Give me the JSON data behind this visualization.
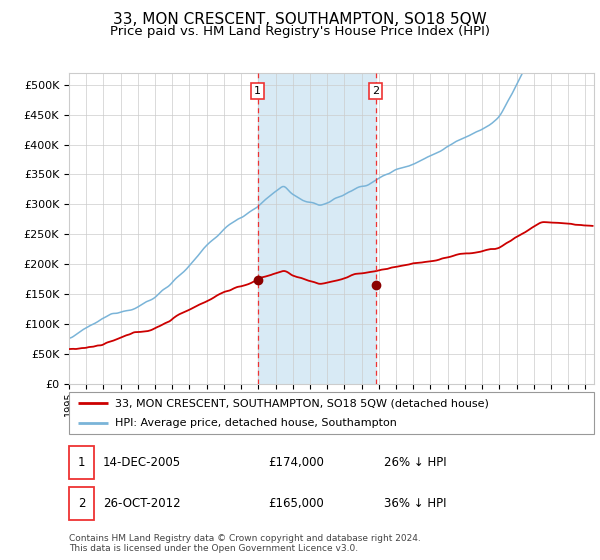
{
  "title": "33, MON CRESCENT, SOUTHAMPTON, SO18 5QW",
  "subtitle": "Price paid vs. HM Land Registry's House Price Index (HPI)",
  "title_fontsize": 11,
  "subtitle_fontsize": 9.5,
  "ylabel_ticks": [
    "£0",
    "£50K",
    "£100K",
    "£150K",
    "£200K",
    "£250K",
    "£300K",
    "£350K",
    "£400K",
    "£450K",
    "£500K"
  ],
  "ytick_values": [
    0,
    50000,
    100000,
    150000,
    200000,
    250000,
    300000,
    350000,
    400000,
    450000,
    500000
  ],
  "ylim": [
    0,
    520000
  ],
  "xlim_start": 1995.0,
  "xlim_end": 2025.5,
  "hpi_color": "#7ab4d8",
  "price_color": "#cc0000",
  "marker_color": "#8b0000",
  "shade_color": "#d8eaf5",
  "dashed_color": "#ee3333",
  "sale1_x": 2005.958,
  "sale1_y": 174000,
  "sale2_x": 2012.822,
  "sale2_y": 165000,
  "legend_entries": [
    "33, MON CRESCENT, SOUTHAMPTON, SO18 5QW (detached house)",
    "HPI: Average price, detached house, Southampton"
  ],
  "sale1_date": "14-DEC-2005",
  "sale1_price": "£174,000",
  "sale1_hpi": "26% ↓ HPI",
  "sale2_date": "26-OCT-2012",
  "sale2_price": "£165,000",
  "sale2_hpi": "36% ↓ HPI",
  "footer": "Contains HM Land Registry data © Crown copyright and database right 2024.\nThis data is licensed under the Open Government Licence v3.0.",
  "grid_color": "#cccccc",
  "bg_color": "#ffffff"
}
